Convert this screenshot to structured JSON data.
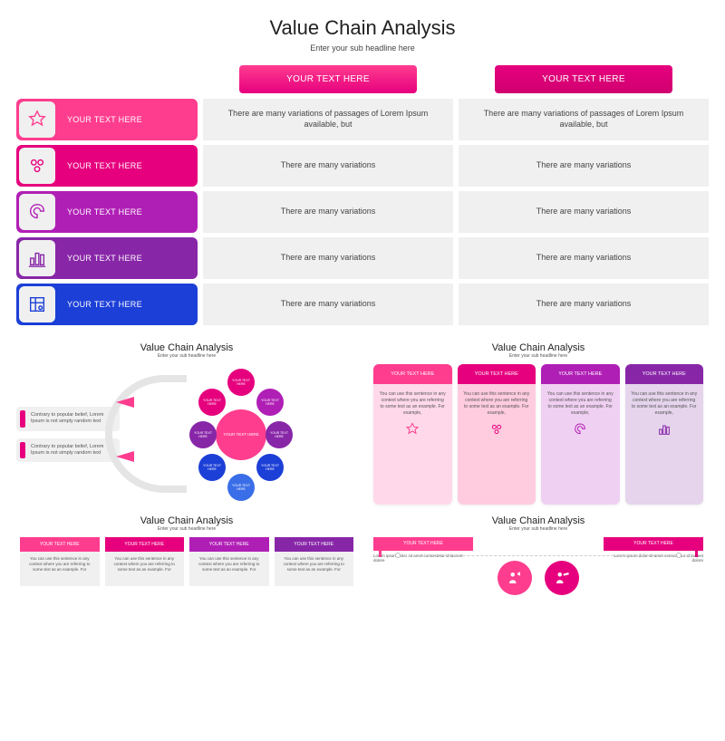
{
  "title": "Value Chain Analysis",
  "subtitle": "Enter your sub headline here",
  "header_left": "YOUR TEXT HERE",
  "header_right": "YOUR TEXT HERE",
  "rows": [
    {
      "label": "YOUR TEXT HERE",
      "cell1": "There are many variations of passages of Lorem Ipsum available, but",
      "cell2": "There are many variations of passages of Lorem Ipsum available, but",
      "color": "#ff3d8f",
      "icon_color": "#ff3d8f"
    },
    {
      "label": "YOUR TEXT HERE",
      "cell1": "There are many variations",
      "cell2": "There are many variations",
      "color": "#e6007e",
      "icon_color": "#e6007e"
    },
    {
      "label": "YOUR TEXT HERE",
      "cell1": "There are many variations",
      "cell2": "There are many variations",
      "color": "#b01fb5",
      "icon_color": "#b01fb5"
    },
    {
      "label": "YOUR TEXT HERE",
      "cell1": "There are many variations",
      "cell2": "There are many variations",
      "color": "#8826a8",
      "icon_color": "#8826a8"
    },
    {
      "label": "YOUR TEXT HERE",
      "cell1": "There are many variations",
      "cell2": "There are many variations",
      "color": "#1c3fd7",
      "icon_color": "#1c3fd7"
    }
  ],
  "thumb_title": "Value Chain Analysis",
  "thumb_sub": "Enter your sub headline here",
  "t1": {
    "note": "Contrary to popular belief, Lorem Ipsum is not simply random text",
    "center": "YOUR TEXT HERE",
    "small_label": "YOUR TEXT HERE",
    "colors": [
      "#e6007e",
      "#b01fb5",
      "#8826a8",
      "#1c3fd7",
      "#3a6ee8",
      "#1c3fd7",
      "#8826a8",
      "#e6007e"
    ]
  },
  "t2": {
    "head": "YOUR TEXT HERE",
    "body": "You can use this sentence in any context where you are referring to some text as an example. For example,",
    "colors": [
      "#ff3d8f",
      "#e6007e",
      "#b01fb5",
      "#8826a8"
    ],
    "body_bg": [
      "#ffd9e9",
      "#ffccdf",
      "#f0d0f2",
      "#e5d4ec"
    ],
    "icon_colors": [
      "#ff3d8f",
      "#e6007e",
      "#b01fb5",
      "#8826a8"
    ]
  },
  "t3": {
    "head": "YOUR TEXT HERE",
    "body": "You can use this sentence in any context where you are referring to some text as an example. For",
    "colors": [
      "#ff3d8f",
      "#e6007e",
      "#b01fb5",
      "#8826a8"
    ]
  },
  "t4": {
    "head": "YOUR TEXT HERE",
    "body": "Lorem ipsum dolor sit amet consectetur id laoreet dolore",
    "colors": [
      "#ff3d8f",
      "#e6007e"
    ],
    "circle_colors": [
      "#ff3d8f",
      "#e6007e"
    ]
  }
}
